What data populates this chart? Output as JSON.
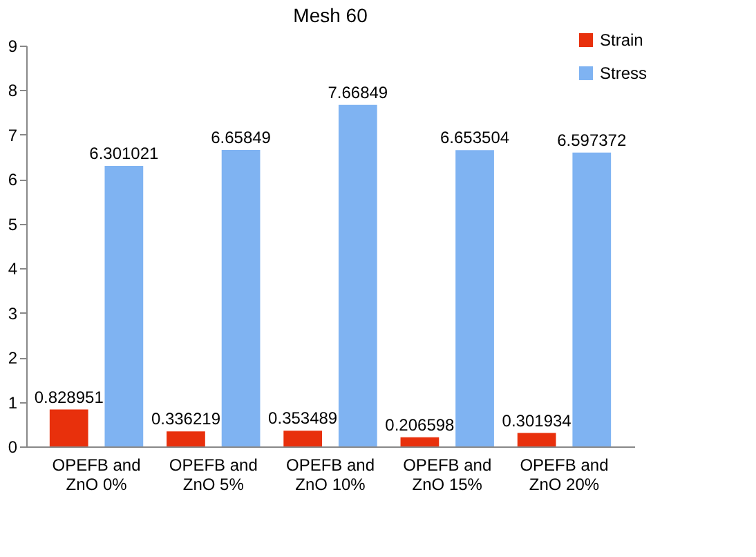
{
  "chart_data": {
    "type": "bar",
    "title": "Mesh 60",
    "categories": [
      "OPEFB and ZnO 0%",
      "OPEFB and ZnO 5%",
      "OPEFB and ZnO 10%",
      "OPEFB and ZnO 15%",
      "OPEFB and ZnO 20%"
    ],
    "series": [
      {
        "name": "Strain",
        "color": "#e8300c",
        "values": [
          0.828951,
          0.336219,
          0.353489,
          0.206598,
          0.301934
        ]
      },
      {
        "name": "Stress",
        "color": "#7fb3f2",
        "values": [
          6.301021,
          6.65849,
          7.66849,
          6.653504,
          6.597372
        ]
      }
    ],
    "ylim": [
      0,
      9
    ],
    "yticks": [
      0,
      1,
      2,
      3,
      4,
      5,
      6,
      7,
      8,
      9
    ],
    "data_labels": true,
    "legend": "top right",
    "grid": false
  }
}
